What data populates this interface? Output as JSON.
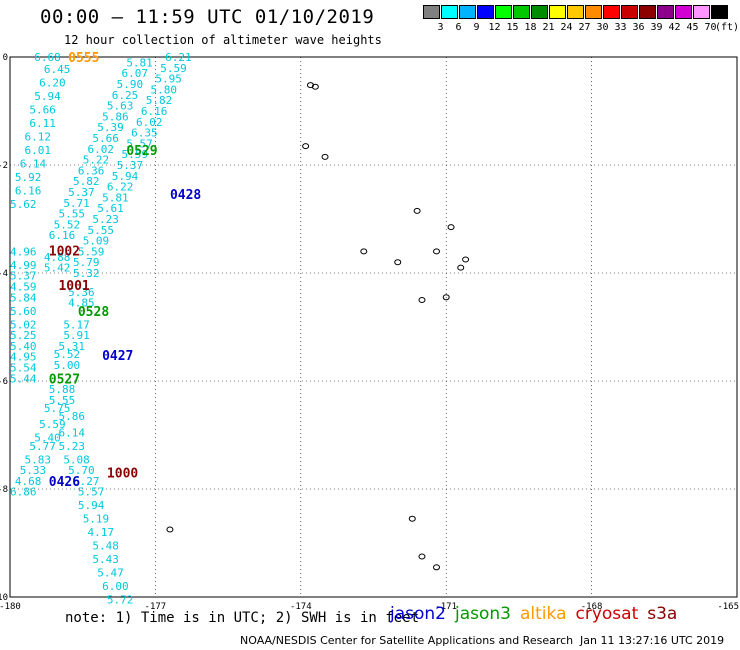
{
  "header": {
    "title": "00:00 – 11:59 UTC 01/10/2019",
    "subtitle": "12 hour collection of altimeter wave heights"
  },
  "colorbar": {
    "colors": [
      "#808080",
      "#00ffff",
      "#00b4ff",
      "#0000ff",
      "#00ff00",
      "#00c800",
      "#008c00",
      "#ffff00",
      "#ffc800",
      "#ff8c00",
      "#ff0000",
      "#c80000",
      "#8c0000",
      "#8c008c",
      "#d200d2",
      "#ff96ff",
      "#000000"
    ],
    "labels": [
      "3",
      "6",
      "9",
      "12",
      "15",
      "18",
      "21",
      "24",
      "27",
      "30",
      "33",
      "36",
      "39",
      "42",
      "45",
      "70"
    ],
    "unit": "(ft)"
  },
  "footer": {
    "note": "note: 1) Time is in UTC; 2) SWH is in feet",
    "satellites": [
      {
        "name": "jason2",
        "color": "#0000cc"
      },
      {
        "name": "jason3",
        "color": "#009900"
      },
      {
        "name": "altika",
        "color": "#ff9900"
      },
      {
        "name": "cryosat",
        "color": "#cc0000"
      },
      {
        "name": "s3a",
        "color": "#8b0000"
      }
    ],
    "credit": "NOAA/NESDIS Center for Satellite Applications and Research",
    "timestamp": "Jan 11 13:27:16 UTC 2019"
  },
  "chart_data": {
    "type": "scatter",
    "xlim": [
      -180,
      -165
    ],
    "ylim": [
      -10,
      0
    ],
    "x_ticks": [
      "-180",
      "-177",
      "-174",
      "-171",
      "-168",
      "-165"
    ],
    "y_ticks": [
      "0",
      "-2",
      "-4",
      "-6",
      "-8",
      "-10"
    ],
    "x_tick_values": [
      -180,
      -177,
      -174,
      -171,
      -168,
      -165
    ],
    "y_tick_values": [
      0,
      -2,
      -4,
      -6,
      -8,
      -10
    ],
    "grid": true,
    "wave_height_color": "#00c8dc",
    "track_labels": [
      {
        "text": "0555",
        "lon": -178.8,
        "lat": 0.0,
        "color": "#ff9900"
      },
      {
        "text": "0529",
        "lon": -177.6,
        "lat": -1.72,
        "color": "#009900"
      },
      {
        "text": "0428",
        "lon": -176.7,
        "lat": -2.54,
        "color": "#0000cc"
      },
      {
        "text": "1002",
        "lon": -179.2,
        "lat": -3.58,
        "color": "#8b0000"
      },
      {
        "text": "1001",
        "lon": -179.0,
        "lat": -4.22,
        "color": "#8b0000"
      },
      {
        "text": "0528",
        "lon": -178.6,
        "lat": -4.7,
        "color": "#009900"
      },
      {
        "text": "0427",
        "lon": -178.1,
        "lat": -5.52,
        "color": "#0000cc"
      },
      {
        "text": "0527",
        "lon": -179.2,
        "lat": -5.95,
        "color": "#009900"
      },
      {
        "text": "1000",
        "lon": -178.0,
        "lat": -7.69,
        "color": "#8b0000"
      },
      {
        "text": "0426",
        "lon": -179.2,
        "lat": -7.85,
        "color": "#0000cc"
      }
    ],
    "wave_heights": [
      {
        "v": "6.68",
        "lon": -179.5,
        "lat": 0.0
      },
      {
        "v": "6.45",
        "lon": -179.3,
        "lat": -0.22
      },
      {
        "v": "6.20",
        "lon": -179.4,
        "lat": -0.47
      },
      {
        "v": "5.94",
        "lon": -179.5,
        "lat": -0.72
      },
      {
        "v": "5.66",
        "lon": -179.6,
        "lat": -0.97
      },
      {
        "v": "6.11",
        "lon": -179.6,
        "lat": -1.22
      },
      {
        "v": "6.12",
        "lon": -179.7,
        "lat": -1.47
      },
      {
        "v": "6.01",
        "lon": -179.7,
        "lat": -1.72
      },
      {
        "v": "6.14",
        "lon": -179.8,
        "lat": -1.97
      },
      {
        "v": "5.92",
        "lon": -179.9,
        "lat": -2.22
      },
      {
        "v": "6.16",
        "lon": -179.9,
        "lat": -2.47
      },
      {
        "v": "5.62",
        "lon": -180.0,
        "lat": -2.72
      },
      {
        "v": "6.21",
        "lon": -176.8,
        "lat": 0.0
      },
      {
        "v": "5.81",
        "lon": -177.6,
        "lat": -0.1
      },
      {
        "v": "5.59",
        "lon": -176.9,
        "lat": -0.2
      },
      {
        "v": "6.07",
        "lon": -177.7,
        "lat": -0.3
      },
      {
        "v": "5.95",
        "lon": -177.0,
        "lat": -0.4
      },
      {
        "v": "5.90",
        "lon": -177.8,
        "lat": -0.5
      },
      {
        "v": "5.80",
        "lon": -177.1,
        "lat": -0.6
      },
      {
        "v": "6.25",
        "lon": -177.9,
        "lat": -0.7
      },
      {
        "v": "5.82",
        "lon": -177.2,
        "lat": -0.8
      },
      {
        "v": "5.63",
        "lon": -178.0,
        "lat": -0.9
      },
      {
        "v": "6.16",
        "lon": -177.3,
        "lat": -1.0
      },
      {
        "v": "5.86",
        "lon": -178.1,
        "lat": -1.1
      },
      {
        "v": "6.02",
        "lon": -177.4,
        "lat": -1.2
      },
      {
        "v": "5.39",
        "lon": -178.2,
        "lat": -1.3
      },
      {
        "v": "6.35",
        "lon": -177.5,
        "lat": -1.4
      },
      {
        "v": "5.66",
        "lon": -178.3,
        "lat": -1.5
      },
      {
        "v": "5.57",
        "lon": -177.6,
        "lat": -1.6
      },
      {
        "v": "6.02",
        "lon": -178.4,
        "lat": -1.7
      },
      {
        "v": "5.59",
        "lon": -177.7,
        "lat": -1.8
      },
      {
        "v": "5.22",
        "lon": -178.5,
        "lat": -1.9
      },
      {
        "v": "5.37",
        "lon": -177.8,
        "lat": -2.0
      },
      {
        "v": "6.36",
        "lon": -178.6,
        "lat": -2.1
      },
      {
        "v": "5.94",
        "lon": -177.9,
        "lat": -2.2
      },
      {
        "v": "5.82",
        "lon": -178.7,
        "lat": -2.3
      },
      {
        "v": "6.22",
        "lon": -178.0,
        "lat": -2.4
      },
      {
        "v": "5.37",
        "lon": -178.8,
        "lat": -2.5
      },
      {
        "v": "5.81",
        "lon": -178.1,
        "lat": -2.6
      },
      {
        "v": "5.71",
        "lon": -178.9,
        "lat": -2.7
      },
      {
        "v": "5.61",
        "lon": -178.2,
        "lat": -2.8
      },
      {
        "v": "5.55",
        "lon": -179.0,
        "lat": -2.9
      },
      {
        "v": "5.23",
        "lon": -178.3,
        "lat": -3.0
      },
      {
        "v": "5.52",
        "lon": -179.1,
        "lat": -3.1
      },
      {
        "v": "5.55",
        "lon": -178.4,
        "lat": -3.2
      },
      {
        "v": "6.16",
        "lon": -179.2,
        "lat": -3.3
      },
      {
        "v": "5.09",
        "lon": -178.5,
        "lat": -3.4
      },
      {
        "v": "5.59",
        "lon": -178.6,
        "lat": -3.6
      },
      {
        "v": "4.88",
        "lon": -179.3,
        "lat": -3.7
      },
      {
        "v": "5.79",
        "lon": -178.7,
        "lat": -3.8
      },
      {
        "v": "5.42",
        "lon": -179.3,
        "lat": -3.9
      },
      {
        "v": "5.32",
        "lon": -178.7,
        "lat": -4.0
      },
      {
        "v": "4.96",
        "lon": -180.0,
        "lat": -3.6
      },
      {
        "v": "4.99",
        "lon": -180.0,
        "lat": -3.85
      },
      {
        "v": "5.37",
        "lon": -180.0,
        "lat": -4.05
      },
      {
        "v": "4.59",
        "lon": -180.0,
        "lat": -4.25
      },
      {
        "v": "5.84",
        "lon": -180.0,
        "lat": -4.45
      },
      {
        "v": "5.36",
        "lon": -178.8,
        "lat": -4.35
      },
      {
        "v": "4.85",
        "lon": -178.8,
        "lat": -4.55
      },
      {
        "v": "5.60",
        "lon": -180.0,
        "lat": -4.7
      },
      {
        "v": "5.17",
        "lon": -178.9,
        "lat": -4.95
      },
      {
        "v": "5.02",
        "lon": -180.0,
        "lat": -4.95
      },
      {
        "v": "5.25",
        "lon": -180.0,
        "lat": -5.15
      },
      {
        "v": "5.91",
        "lon": -178.9,
        "lat": -5.15
      },
      {
        "v": "5.40",
        "lon": -180.0,
        "lat": -5.35
      },
      {
        "v": "5.31",
        "lon": -179.0,
        "lat": -5.35
      },
      {
        "v": "4.95",
        "lon": -180.0,
        "lat": -5.55
      },
      {
        "v": "5.52",
        "lon": -179.1,
        "lat": -5.5
      },
      {
        "v": "5.54",
        "lon": -180.0,
        "lat": -5.75
      },
      {
        "v": "5.00",
        "lon": -179.1,
        "lat": -5.7
      },
      {
        "v": "5.44",
        "lon": -180.0,
        "lat": -5.95
      },
      {
        "v": "5.88",
        "lon": -179.2,
        "lat": -6.15
      },
      {
        "v": "5.55",
        "lon": -179.2,
        "lat": -6.35
      },
      {
        "v": "5.75",
        "lon": -179.3,
        "lat": -6.5
      },
      {
        "v": "5.86",
        "lon": -179.0,
        "lat": -6.65
      },
      {
        "v": "5.59",
        "lon": -179.4,
        "lat": -6.8
      },
      {
        "v": "6.14",
        "lon": -179.0,
        "lat": -6.95
      },
      {
        "v": "5.40",
        "lon": -179.5,
        "lat": -7.05
      },
      {
        "v": "5.77",
        "lon": -179.6,
        "lat": -7.2
      },
      {
        "v": "5.23",
        "lon": -179.0,
        "lat": -7.2
      },
      {
        "v": "5.83",
        "lon": -179.7,
        "lat": -7.45
      },
      {
        "v": "5.08",
        "lon": -178.9,
        "lat": -7.45
      },
      {
        "v": "5.33",
        "lon": -179.8,
        "lat": -7.65
      },
      {
        "v": "5.70",
        "lon": -178.8,
        "lat": -7.65
      },
      {
        "v": "4.68",
        "lon": -179.9,
        "lat": -7.85
      },
      {
        "v": "5.27",
        "lon": -178.7,
        "lat": -7.85
      },
      {
        "v": "6.86",
        "lon": -180.0,
        "lat": -8.05
      },
      {
        "v": "5.57",
        "lon": -178.6,
        "lat": -8.05
      },
      {
        "v": "5.94",
        "lon": -178.6,
        "lat": -8.3
      },
      {
        "v": "5.19",
        "lon": -178.5,
        "lat": -8.55
      },
      {
        "v": "4.17",
        "lon": -178.4,
        "lat": -8.8
      },
      {
        "v": "5.48",
        "lon": -178.3,
        "lat": -9.05
      },
      {
        "v": "5.43",
        "lon": -178.3,
        "lat": -9.3
      },
      {
        "v": "5.47",
        "lon": -178.2,
        "lat": -9.55
      },
      {
        "v": "6.00",
        "lon": -178.1,
        "lat": -9.8
      },
      {
        "v": "5.72",
        "lon": -178.0,
        "lat": -10.05
      }
    ],
    "islands": [
      {
        "lon": -173.8,
        "lat": -0.52
      },
      {
        "lon": -173.7,
        "lat": -0.55
      },
      {
        "lon": -173.9,
        "lat": -1.65
      },
      {
        "lon": -173.5,
        "lat": -1.85
      },
      {
        "lon": -171.6,
        "lat": -2.85
      },
      {
        "lon": -170.9,
        "lat": -3.15
      },
      {
        "lon": -171.2,
        "lat": -3.6
      },
      {
        "lon": -170.6,
        "lat": -3.75
      },
      {
        "lon": -172.7,
        "lat": -3.6
      },
      {
        "lon": -172.0,
        "lat": -3.8
      },
      {
        "lon": -170.7,
        "lat": -3.9
      },
      {
        "lon": -171.5,
        "lat": -4.5
      },
      {
        "lon": -171.0,
        "lat": -4.45
      },
      {
        "lon": -171.7,
        "lat": -8.55
      },
      {
        "lon": -176.7,
        "lat": -8.75
      },
      {
        "lon": -171.5,
        "lat": -9.25
      },
      {
        "lon": -171.2,
        "lat": -9.45
      }
    ]
  }
}
